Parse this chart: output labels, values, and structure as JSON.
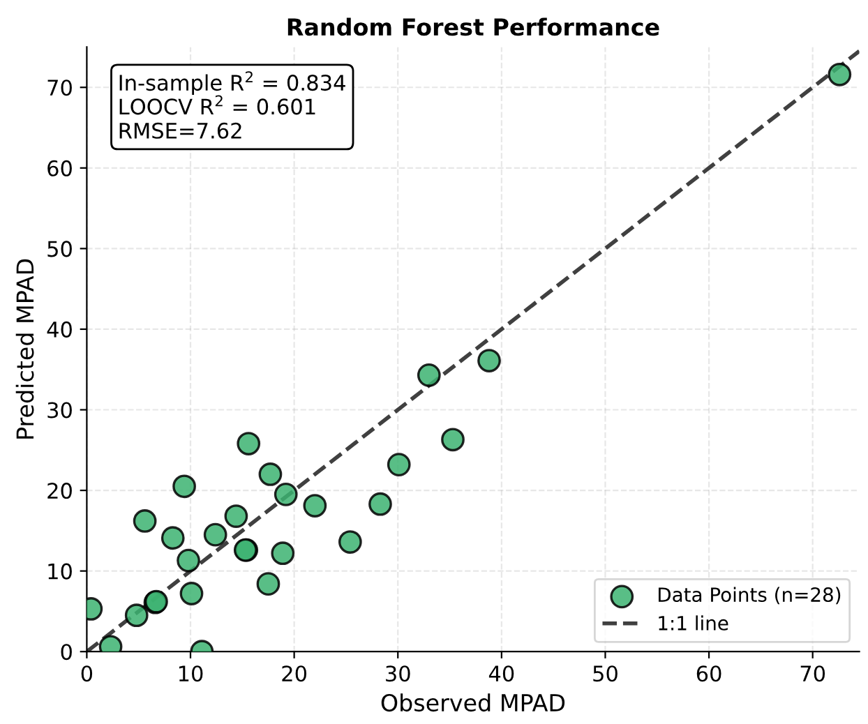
{
  "chart_data": {
    "type": "scatter",
    "title": "Random Forest Performance",
    "xlabel": "Observed MPAD",
    "ylabel": "Predicted MPAD",
    "xlim": [
      0,
      74.5
    ],
    "ylim": [
      0,
      75
    ],
    "xticks": [
      0,
      10,
      20,
      30,
      40,
      50,
      60,
      70
    ],
    "yticks": [
      0,
      10,
      20,
      30,
      40,
      50,
      60,
      70
    ],
    "grid": true,
    "legend": "bottom right",
    "marker": "circle",
    "annotations": [
      "In-sample R$^{2}$ = 0.834",
      "LOOCV R$^{2}$ = 0.601",
      "RMSE=7.62"
    ],
    "series": [
      {
        "name": "Data Points (n=28)",
        "color": "#3cb371",
        "x": [
          0.4,
          2.3,
          4.8,
          6.6,
          6.7,
          5.6,
          8.3,
          9.4,
          9.8,
          10.1,
          11.1,
          12.4,
          14.4,
          15.4,
          15.3,
          15.6,
          17.7,
          17.5,
          18.9,
          19.2,
          22.0,
          25.4,
          28.3,
          30.1,
          33.0,
          35.3,
          38.8,
          72.6
        ],
        "values": [
          5.3,
          0.6,
          4.5,
          6.1,
          6.2,
          16.2,
          14.1,
          20.5,
          11.3,
          7.2,
          0,
          14.5,
          16.8,
          12.6,
          12.6,
          25.8,
          22.0,
          8.4,
          12.2,
          19.5,
          18.1,
          13.6,
          18.3,
          23.2,
          34.3,
          26.3,
          36.1,
          71.6
        ]
      },
      {
        "name": "1:1 line",
        "type": "line",
        "color": "#404040",
        "line_style": "dashed",
        "marker": "none",
        "x": [
          0,
          74.5
        ],
        "values": [
          0,
          74.5
        ]
      }
    ]
  }
}
